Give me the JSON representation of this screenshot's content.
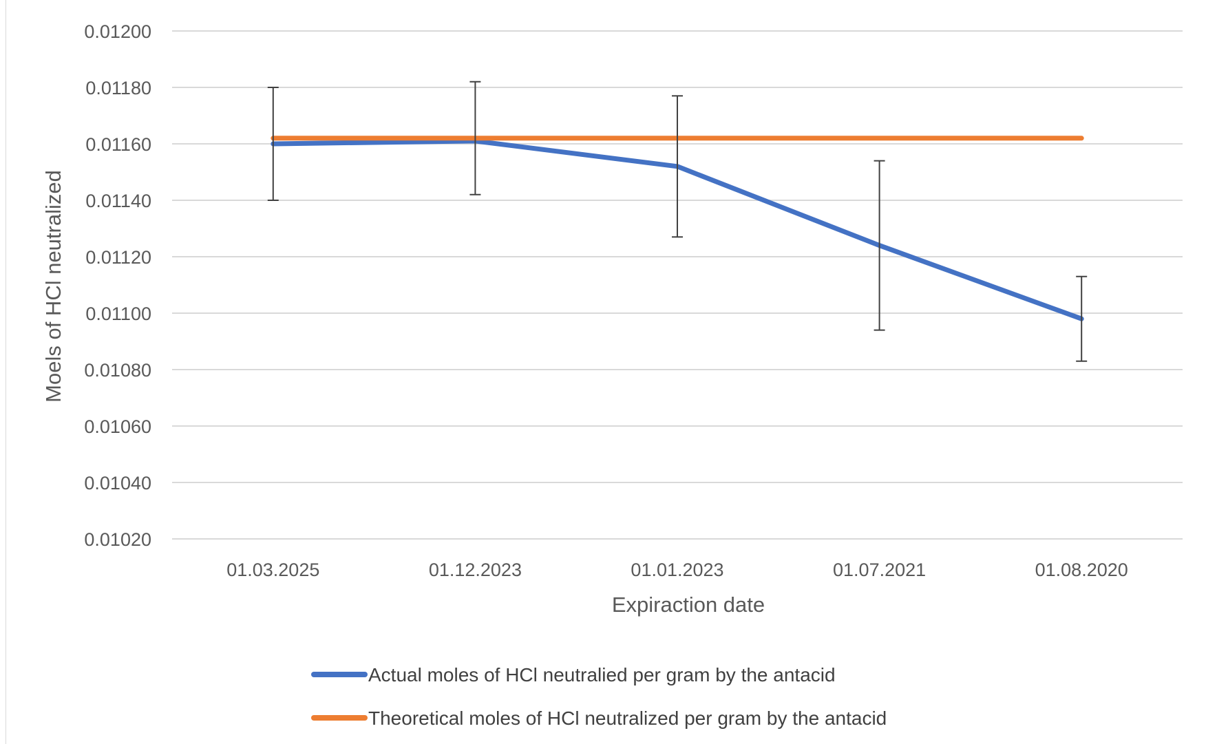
{
  "chart_data": {
    "type": "line",
    "title": "",
    "xlabel": "Expiraction date",
    "ylabel": "Moels of HCl neutralized",
    "categories": [
      "01.03.2025",
      "01.12.2023",
      "01.01.2023",
      "01.07.2021",
      "01.08.2020"
    ],
    "ylim": [
      0.0102,
      0.012
    ],
    "yticks": [
      "0.01020",
      "0.01040",
      "0.01060",
      "0.01080",
      "0.01100",
      "0.01120",
      "0.01140",
      "0.01160",
      "0.01180",
      "0.01200"
    ],
    "grid": true,
    "legend_position": "bottom",
    "series": [
      {
        "name": "Actual moles of HCl neutralied per gram by the antacid",
        "color": "#4472c4",
        "values": [
          0.0116,
          0.01161,
          0.01152,
          0.01124,
          0.01098
        ],
        "error_low": [
          0.0114,
          0.01142,
          0.01127,
          0.01094,
          0.01083
        ],
        "error_high": [
          0.0118,
          0.01182,
          0.01177,
          0.01154,
          0.01113
        ]
      },
      {
        "name": "Theoretical moles of HCl neutralized per gram by the antacid",
        "color": "#ed7d31",
        "values": [
          0.01162,
          0.01162,
          0.01162,
          0.01162,
          0.01162
        ]
      }
    ]
  }
}
